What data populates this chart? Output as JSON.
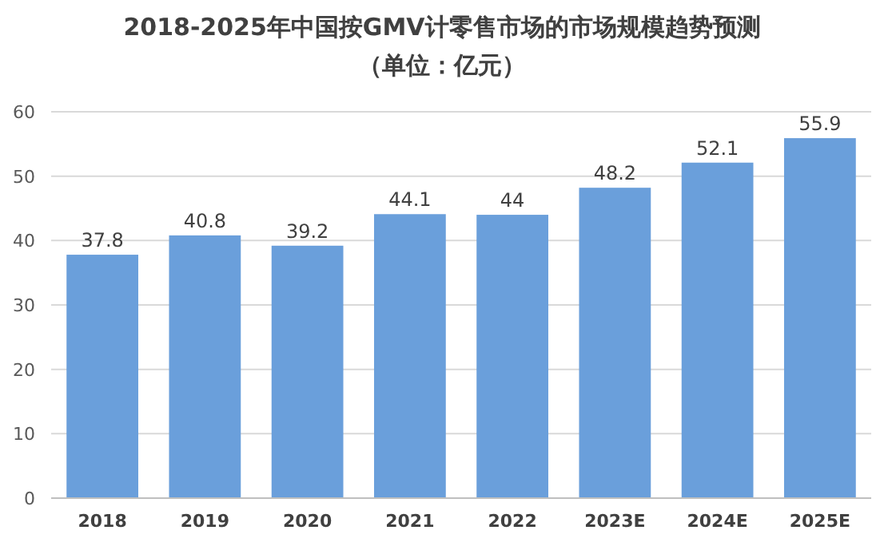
{
  "chart_data": {
    "type": "bar",
    "title": "2018-2025年中国按GMV计零售市场的市场规模趋势预测",
    "subtitle": "（单位：亿元）",
    "categories": [
      "2018",
      "2019",
      "2020",
      "2021",
      "2022",
      "2023E",
      "2024E",
      "2025E"
    ],
    "values": [
      37.8,
      40.8,
      39.2,
      44.1,
      44,
      48.2,
      52.1,
      55.9
    ],
    "color": "#6a9fdb",
    "ylim": [
      0,
      60
    ],
    "yticks": [
      0,
      10,
      20,
      30,
      40,
      50,
      60
    ],
    "grid": "y",
    "data_labels": true
  }
}
